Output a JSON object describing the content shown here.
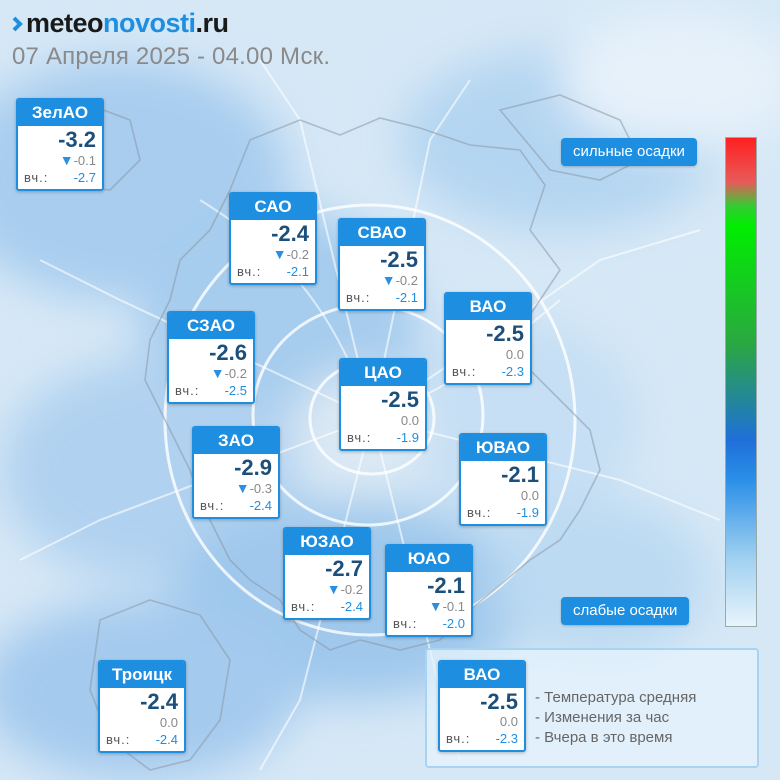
{
  "header": {
    "logo_main": "meteo",
    "logo_accent": "novosti",
    "logo_tld": ".ru",
    "date": "07 Апреля 2025 - 04.00 Мск."
  },
  "districts": [
    {
      "name": "ЗелАО",
      "temp": "-3.2",
      "arrow": "▼",
      "delta": "-0.1",
      "yest_label": "вч.:",
      "yest": "-2.7"
    },
    {
      "name": "САО",
      "temp": "-2.4",
      "arrow": "▼",
      "delta": "-0.2",
      "yest_label": "вч.:",
      "yest": "-2.1"
    },
    {
      "name": "СВАО",
      "temp": "-2.5",
      "arrow": "▼",
      "delta": "-0.2",
      "yest_label": "вч.:",
      "yest": "-2.1"
    },
    {
      "name": "ВАО",
      "temp": "-2.5",
      "arrow": "",
      "delta": "0.0",
      "yest_label": "вч.:",
      "yest": "-2.3"
    },
    {
      "name": "СЗАО",
      "temp": "-2.6",
      "arrow": "▼",
      "delta": "-0.2",
      "yest_label": "вч.:",
      "yest": "-2.5"
    },
    {
      "name": "ЦАО",
      "temp": "-2.5",
      "arrow": "",
      "delta": "0.0",
      "yest_label": "вч.:",
      "yest": "-1.9"
    },
    {
      "name": "ЗАО",
      "temp": "-2.9",
      "arrow": "▼",
      "delta": "-0.3",
      "yest_label": "вч.:",
      "yest": "-2.4"
    },
    {
      "name": "ЮВАО",
      "temp": "-2.1",
      "arrow": "",
      "delta": "0.0",
      "yest_label": "вч.:",
      "yest": "-1.9"
    },
    {
      "name": "ЮЗАО",
      "temp": "-2.7",
      "arrow": "▼",
      "delta": "-0.2",
      "yest_label": "вч.:",
      "yest": "-2.4"
    },
    {
      "name": "ЮАО",
      "temp": "-2.1",
      "arrow": "▼",
      "delta": "-0.1",
      "yest_label": "вч.:",
      "yest": "-2.0"
    },
    {
      "name": "Троицк",
      "temp": "-2.4",
      "arrow": "",
      "delta": "0.0",
      "yest_label": "вч.:",
      "yest": "-2.4"
    }
  ],
  "precip_scale": {
    "top_label": "сильные осадки",
    "bottom_label": "слабые осадки",
    "colors": [
      "#ff2020",
      "#00ee00",
      "#2aa840",
      "#1f6fd9",
      "#9fd0f0",
      "#e8f4fc"
    ]
  },
  "legend": {
    "sample": {
      "name": "ВАО",
      "temp": "-2.5",
      "delta": "0.0",
      "yest_label": "вч.:",
      "yest": "-2.3"
    },
    "items": [
      "- Температура средняя",
      "- Изменения за час",
      "- Вчера в это время"
    ]
  },
  "colors": {
    "accent": "#1e8fe0",
    "temp_text": "#1c4f7a"
  }
}
